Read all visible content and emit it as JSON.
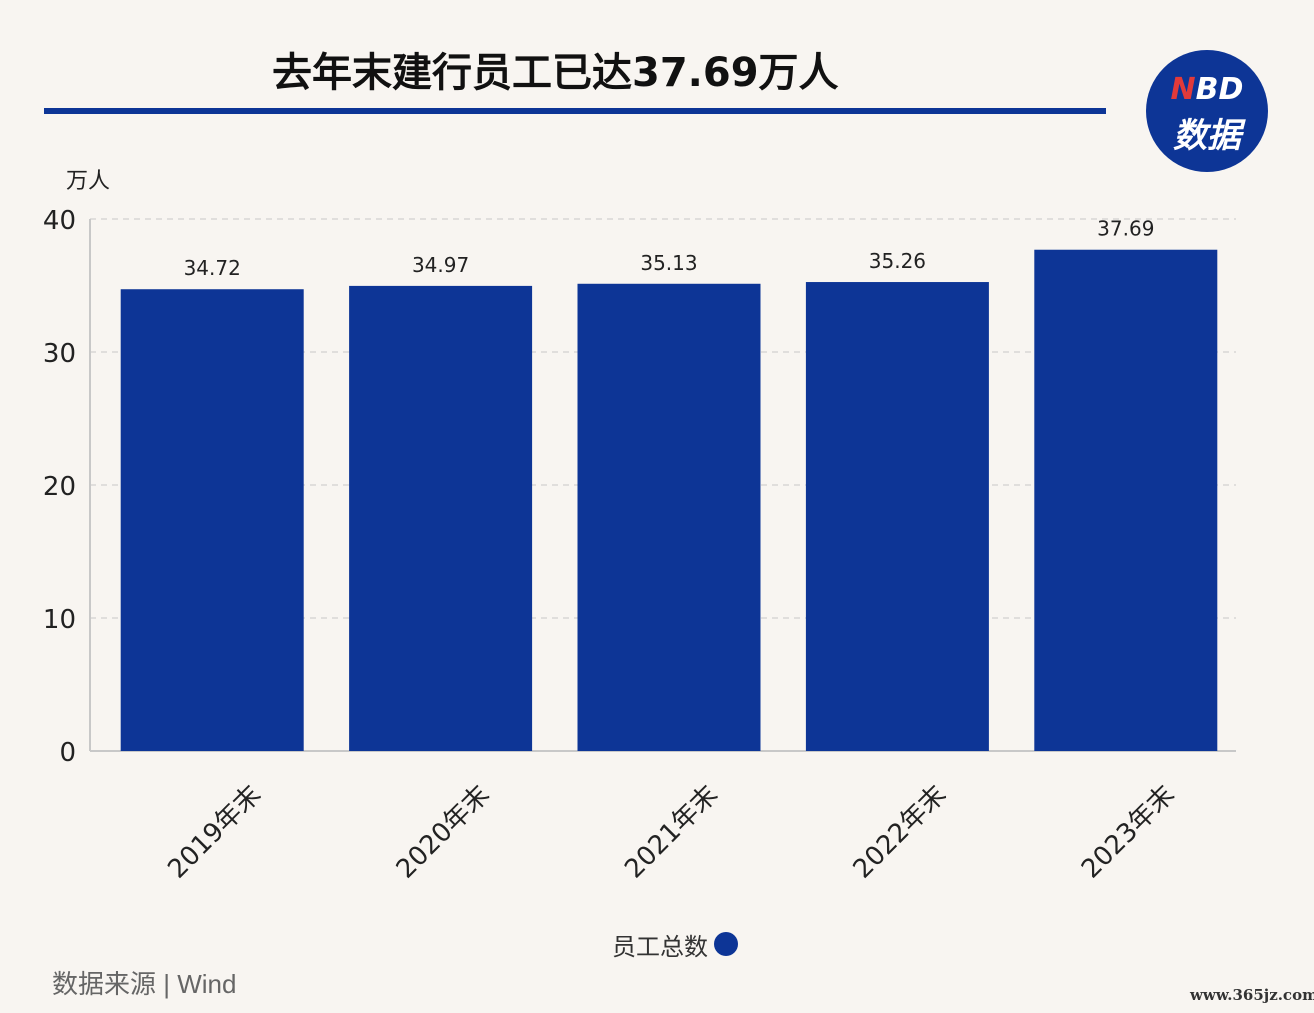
{
  "chart_data": {
    "type": "bar",
    "title": "去年末建行员工已达37.69万人",
    "ylabel": "万人",
    "categories": [
      "2019年末",
      "2020年末",
      "2021年末",
      "2022年末",
      "2023年末"
    ],
    "series": [
      {
        "name": "员工总数",
        "values": [
          34.72,
          34.97,
          35.13,
          35.26,
          37.69
        ]
      }
    ],
    "data_labels": [
      "34.72",
      "34.97",
      "35.13",
      "35.26",
      "37.69"
    ],
    "ylim": [
      0,
      40
    ],
    "yticks": [
      0,
      10,
      20,
      30,
      40
    ],
    "grid": "horizontal dashed",
    "legend": "bottom-center",
    "bar_color": "#0d3596"
  },
  "logo": {
    "line1_n": "N",
    "line1_rest": "BD",
    "line2": "数据"
  },
  "source": "数据来源 | Wind",
  "watermark_site": "www.365jz.com",
  "colors": {
    "background": "#f8f5f1",
    "accent": "#0d3596"
  }
}
